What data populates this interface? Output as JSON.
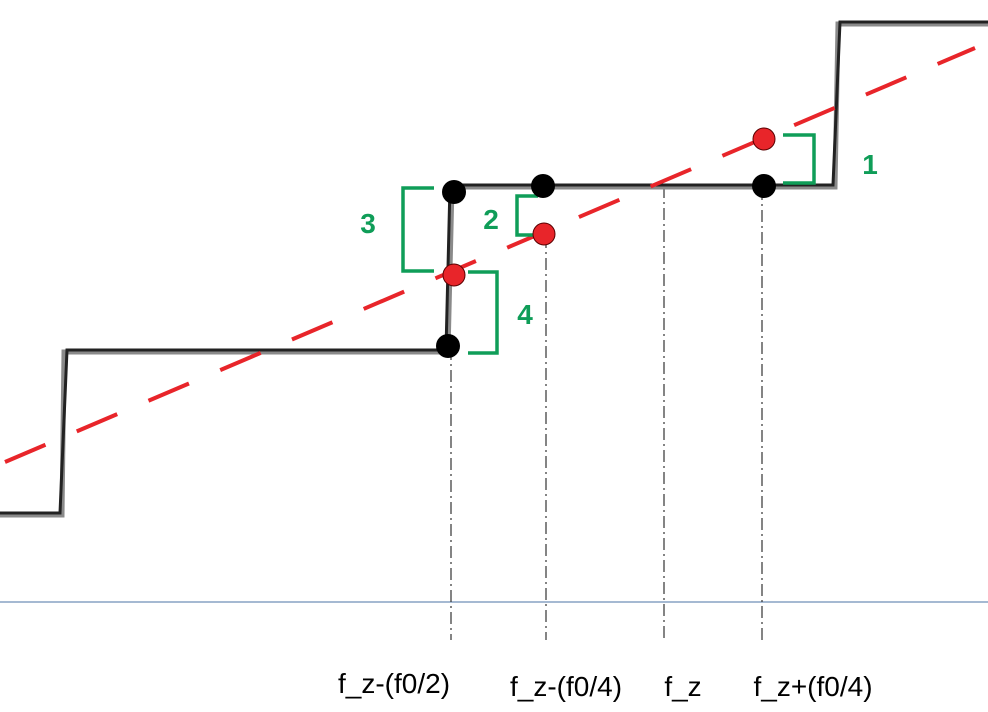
{
  "colors": {
    "staircase": "#222222",
    "staircase_shadow": "#8a8a8a",
    "dashed_line": "#e8252a",
    "red_point_fill": "#e8252a",
    "black_point_fill": "#000000",
    "bracket": "#0f9d58",
    "baseline": "#6f8fb8",
    "guide_line": "#333333"
  },
  "axis_labels": {
    "f_minus_half": "f_z-(f0/2)",
    "f_minus_quarter": "f_z-(f0/4)",
    "f_center": "f_z",
    "f_plus_quarter": "f_z+(f0/4)"
  },
  "brackets": [
    {
      "id": "1",
      "label": "1"
    },
    {
      "id": "2",
      "label": "2"
    },
    {
      "id": "3",
      "label": "3"
    },
    {
      "id": "4",
      "label": "4"
    }
  ]
}
